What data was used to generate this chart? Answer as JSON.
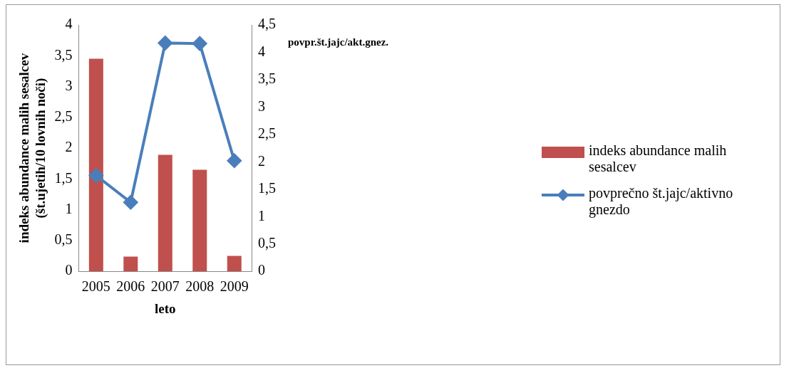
{
  "chart_data": {
    "type": "bar",
    "categories": [
      "2005",
      "2006",
      "2007",
      "2008",
      "2009"
    ],
    "xlabel": "leto",
    "ylabel": "indeks abundance malih sesalcev (št.ujetih/10 lovnih noči)",
    "y2label": "povpr.št.jajc/akt.gnez.",
    "series": [
      {
        "name": "indeks abundance malih sesalcev",
        "color": "#c0504d",
        "values": [
          3.45,
          0.24,
          1.89,
          1.65,
          0.25
        ]
      },
      {
        "name": "povprečno št.jajc/aktivno gnezdo",
        "color": "#4a7ebb",
        "type": "line",
        "axis": "y2",
        "marker": "diamond",
        "values": [
          1.75,
          1.26,
          4.17,
          4.16,
          2.02
        ]
      }
    ],
    "ylim": [
      0,
      4
    ],
    "yticks": [
      0,
      {
        "value": 0.5,
        "label": "0,5"
      },
      1,
      {
        "value": 1.5,
        "label": "1,5"
      },
      2,
      {
        "value": 2.5,
        "label": "2,5"
      },
      3,
      {
        "value": 3.5,
        "label": "3,5"
      },
      4
    ],
    "y2lim": [
      0,
      4.5
    ],
    "y2ticks": [
      0,
      {
        "value": 0.5,
        "label": "0,5"
      },
      1,
      {
        "value": 1.5,
        "label": "1,5"
      },
      2,
      {
        "value": 2.5,
        "label": "2,5"
      },
      3,
      {
        "value": 3.5,
        "label": "3,5"
      },
      4,
      {
        "value": 4.5,
        "label": "4,5"
      }
    ],
    "grid": false,
    "legend": "right"
  }
}
